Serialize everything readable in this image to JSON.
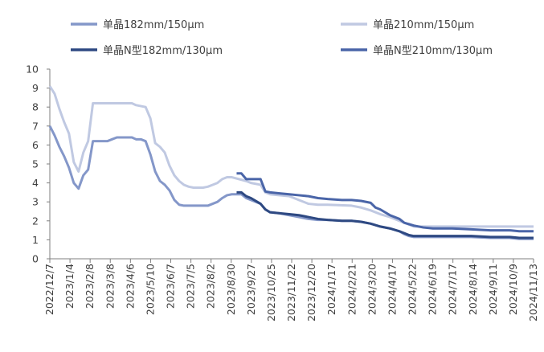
{
  "chart_data": {
    "type": "line",
    "title": "",
    "xlabel": "",
    "ylabel": "",
    "ylim": [
      0,
      10
    ],
    "yticks": [
      0,
      1,
      2,
      3,
      4,
      5,
      6,
      7,
      8,
      9,
      10
    ],
    "x_range": [
      "2022-12-07",
      "2024-11-13"
    ],
    "x_ticks": [
      "2022/12/7",
      "2023/1/4",
      "2023/2/8",
      "2023/3/8",
      "2023/4/6",
      "2023/5/10",
      "2023/6/7",
      "2023/7/5",
      "2023/8/2",
      "2023/8/30",
      "2023/9/27",
      "2023/10/25",
      "2023/11/22",
      "2023/12/20",
      "2024/1/17",
      "2024/2/21",
      "2024/3/20",
      "2024/4/17",
      "2024/5/22",
      "2024/6/19",
      "2024/7/17",
      "2024/8/14",
      "2024/9/11",
      "2024/10/9",
      "2024/11/13"
    ],
    "grid": false,
    "legend_position": "top",
    "series": [
      {
        "name": "单晶182mm/150μm",
        "color": "#8497c9",
        "width": 3,
        "points": [
          [
            "2022-12-07",
            7.0
          ],
          [
            "2022-12-14",
            6.5
          ],
          [
            "2022-12-21",
            5.9
          ],
          [
            "2022-12-28",
            5.4
          ],
          [
            "2023-01-04",
            4.8
          ],
          [
            "2023-01-11",
            4.0
          ],
          [
            "2023-01-18",
            3.7
          ],
          [
            "2023-01-25",
            4.4
          ],
          [
            "2023-02-01",
            4.7
          ],
          [
            "2023-02-08",
            6.2
          ],
          [
            "2023-03-01",
            6.2
          ],
          [
            "2023-03-08",
            6.3
          ],
          [
            "2023-03-15",
            6.4
          ],
          [
            "2023-03-29",
            6.4
          ],
          [
            "2023-04-06",
            6.4
          ],
          [
            "2023-04-12",
            6.3
          ],
          [
            "2023-04-19",
            6.3
          ],
          [
            "2023-04-26",
            6.2
          ],
          [
            "2023-05-03",
            5.5
          ],
          [
            "2023-05-10",
            4.6
          ],
          [
            "2023-05-17",
            4.1
          ],
          [
            "2023-05-24",
            3.9
          ],
          [
            "2023-05-31",
            3.6
          ],
          [
            "2023-06-07",
            3.1
          ],
          [
            "2023-06-14",
            2.85
          ],
          [
            "2023-06-21",
            2.8
          ],
          [
            "2023-07-05",
            2.8
          ],
          [
            "2023-07-12",
            2.8
          ],
          [
            "2023-07-19",
            2.8
          ],
          [
            "2023-07-26",
            2.8
          ],
          [
            "2023-08-02",
            2.9
          ],
          [
            "2023-08-09",
            3.0
          ],
          [
            "2023-08-16",
            3.2
          ],
          [
            "2023-08-23",
            3.35
          ],
          [
            "2023-08-30",
            3.4
          ],
          [
            "2023-09-13",
            3.4
          ],
          [
            "2023-09-20",
            3.2
          ],
          [
            "2023-09-27",
            3.1
          ],
          [
            "2023-10-04",
            3.0
          ],
          [
            "2023-10-11",
            2.9
          ],
          [
            "2023-10-18",
            2.6
          ],
          [
            "2023-10-25",
            2.45
          ],
          [
            "2023-11-08",
            2.4
          ],
          [
            "2023-11-22",
            2.3
          ],
          [
            "2023-12-06",
            2.2
          ],
          [
            "2023-12-20",
            2.1
          ],
          [
            "2024-01-03",
            2.05
          ],
          [
            "2024-01-17",
            2.05
          ],
          [
            "2024-02-07",
            2.0
          ],
          [
            "2024-02-21",
            2.0
          ],
          [
            "2024-03-06",
            1.95
          ],
          [
            "2024-03-20",
            1.85
          ],
          [
            "2024-04-03",
            1.7
          ],
          [
            "2024-04-17",
            1.6
          ],
          [
            "2024-05-01",
            1.45
          ],
          [
            "2024-05-08",
            1.3
          ],
          [
            "2024-05-15",
            1.2
          ],
          [
            "2024-05-22",
            1.15
          ],
          [
            "2024-06-19",
            1.15
          ],
          [
            "2024-07-17",
            1.15
          ],
          [
            "2024-08-14",
            1.15
          ],
          [
            "2024-09-11",
            1.1
          ],
          [
            "2024-10-09",
            1.1
          ],
          [
            "2024-10-23",
            1.05
          ],
          [
            "2024-11-06",
            1.05
          ],
          [
            "2024-11-13",
            1.05
          ]
        ]
      },
      {
        "name": "单晶210mm/150μm",
        "color": "#c0c9e2",
        "width": 3,
        "points": [
          [
            "2022-12-07",
            9.1
          ],
          [
            "2022-12-14",
            8.7
          ],
          [
            "2022-12-21",
            7.9
          ],
          [
            "2022-12-28",
            7.2
          ],
          [
            "2023-01-04",
            6.6
          ],
          [
            "2023-01-11",
            5.1
          ],
          [
            "2023-01-18",
            4.6
          ],
          [
            "2023-01-25",
            5.6
          ],
          [
            "2023-02-01",
            6.2
          ],
          [
            "2023-02-08",
            8.2
          ],
          [
            "2023-03-01",
            8.2
          ],
          [
            "2023-03-08",
            8.2
          ],
          [
            "2023-04-06",
            8.2
          ],
          [
            "2023-04-12",
            8.1
          ],
          [
            "2023-04-26",
            8.0
          ],
          [
            "2023-05-03",
            7.4
          ],
          [
            "2023-05-10",
            6.1
          ],
          [
            "2023-05-17",
            5.9
          ],
          [
            "2023-05-24",
            5.6
          ],
          [
            "2023-05-31",
            4.9
          ],
          [
            "2023-06-07",
            4.4
          ],
          [
            "2023-06-14",
            4.1
          ],
          [
            "2023-06-21",
            3.9
          ],
          [
            "2023-06-28",
            3.8
          ],
          [
            "2023-07-05",
            3.75
          ],
          [
            "2023-07-19",
            3.75
          ],
          [
            "2023-07-26",
            3.8
          ],
          [
            "2023-08-02",
            3.9
          ],
          [
            "2023-08-09",
            4.0
          ],
          [
            "2023-08-16",
            4.2
          ],
          [
            "2023-08-23",
            4.3
          ],
          [
            "2023-08-30",
            4.3
          ],
          [
            "2023-09-20",
            4.1
          ],
          [
            "2023-09-27",
            4.0
          ],
          [
            "2023-10-11",
            3.9
          ],
          [
            "2023-10-18",
            3.5
          ],
          [
            "2023-10-25",
            3.4
          ],
          [
            "2023-11-22",
            3.3
          ],
          [
            "2023-12-06",
            3.1
          ],
          [
            "2023-12-20",
            2.9
          ],
          [
            "2024-01-03",
            2.85
          ],
          [
            "2024-01-17",
            2.85
          ],
          [
            "2024-02-21",
            2.8
          ],
          [
            "2024-03-06",
            2.7
          ],
          [
            "2024-03-20",
            2.55
          ],
          [
            "2024-04-03",
            2.35
          ],
          [
            "2024-04-17",
            2.2
          ],
          [
            "2024-05-01",
            2.0
          ],
          [
            "2024-05-15",
            1.8
          ],
          [
            "2024-05-22",
            1.7
          ],
          [
            "2024-06-19",
            1.7
          ],
          [
            "2024-07-17",
            1.7
          ],
          [
            "2024-08-14",
            1.7
          ],
          [
            "2024-09-11",
            1.7
          ],
          [
            "2024-10-09",
            1.7
          ],
          [
            "2024-11-13",
            1.7
          ]
        ]
      },
      {
        "name": "单晶N型182mm/130μm",
        "color": "#2e4982",
        "width": 3,
        "points": [
          [
            "2023-09-06",
            3.5
          ],
          [
            "2023-09-13",
            3.5
          ],
          [
            "2023-09-20",
            3.3
          ],
          [
            "2023-09-27",
            3.2
          ],
          [
            "2023-10-11",
            2.9
          ],
          [
            "2023-10-18",
            2.6
          ],
          [
            "2023-10-25",
            2.45
          ],
          [
            "2023-11-08",
            2.4
          ],
          [
            "2023-11-22",
            2.35
          ],
          [
            "2023-12-06",
            2.3
          ],
          [
            "2023-12-20",
            2.2
          ],
          [
            "2024-01-03",
            2.1
          ],
          [
            "2024-01-17",
            2.05
          ],
          [
            "2024-02-07",
            2.0
          ],
          [
            "2024-02-21",
            2.0
          ],
          [
            "2024-03-06",
            1.95
          ],
          [
            "2024-03-20",
            1.85
          ],
          [
            "2024-04-03",
            1.7
          ],
          [
            "2024-04-17",
            1.6
          ],
          [
            "2024-05-01",
            1.45
          ],
          [
            "2024-05-08",
            1.35
          ],
          [
            "2024-05-15",
            1.25
          ],
          [
            "2024-05-22",
            1.2
          ],
          [
            "2024-06-19",
            1.2
          ],
          [
            "2024-07-17",
            1.2
          ],
          [
            "2024-08-14",
            1.2
          ],
          [
            "2024-09-11",
            1.15
          ],
          [
            "2024-10-09",
            1.15
          ],
          [
            "2024-10-23",
            1.1
          ],
          [
            "2024-11-06",
            1.1
          ],
          [
            "2024-11-13",
            1.1
          ]
        ]
      },
      {
        "name": "单晶N型210mm/130μm",
        "color": "#4a65a8",
        "width": 3,
        "points": [
          [
            "2023-09-06",
            4.5
          ],
          [
            "2023-09-13",
            4.5
          ],
          [
            "2023-09-20",
            4.2
          ],
          [
            "2023-10-11",
            4.2
          ],
          [
            "2023-10-18",
            3.55
          ],
          [
            "2023-10-25",
            3.5
          ],
          [
            "2023-11-08",
            3.45
          ],
          [
            "2023-11-22",
            3.4
          ],
          [
            "2023-12-06",
            3.35
          ],
          [
            "2023-12-20",
            3.3
          ],
          [
            "2024-01-03",
            3.2
          ],
          [
            "2024-01-17",
            3.15
          ],
          [
            "2024-02-07",
            3.1
          ],
          [
            "2024-02-21",
            3.1
          ],
          [
            "2024-03-06",
            3.05
          ],
          [
            "2024-03-20",
            2.95
          ],
          [
            "2024-03-27",
            2.7
          ],
          [
            "2024-04-03",
            2.6
          ],
          [
            "2024-04-17",
            2.3
          ],
          [
            "2024-05-01",
            2.1
          ],
          [
            "2024-05-08",
            1.9
          ],
          [
            "2024-05-22",
            1.75
          ],
          [
            "2024-06-05",
            1.65
          ],
          [
            "2024-06-19",
            1.6
          ],
          [
            "2024-07-17",
            1.6
          ],
          [
            "2024-08-14",
            1.55
          ],
          [
            "2024-09-11",
            1.5
          ],
          [
            "2024-10-09",
            1.5
          ],
          [
            "2024-10-23",
            1.45
          ],
          [
            "2024-11-06",
            1.45
          ],
          [
            "2024-11-13",
            1.45
          ]
        ]
      }
    ]
  }
}
